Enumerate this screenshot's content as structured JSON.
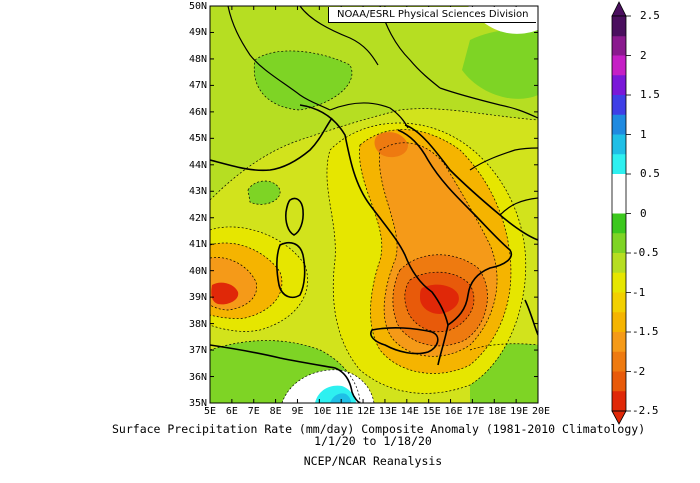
{
  "credit": "NOAA/ESRL Physical Sciences Division",
  "lat_labels": [
    "50N",
    "49N",
    "48N",
    "47N",
    "46N",
    "45N",
    "44N",
    "43N",
    "42N",
    "41N",
    "40N",
    "39N",
    "38N",
    "37N",
    "36N",
    "35N"
  ],
  "lon_labels": [
    "5E",
    "6E",
    "7E",
    "8E",
    "9E",
    "10E",
    "11E",
    "12E",
    "13E",
    "14E",
    "15E",
    "16E",
    "17E",
    "18E",
    "19E",
    "20E"
  ],
  "caption": {
    "line1": "Surface Precipitation Rate (mm/day) Composite Anomaly (1981-2010 Climatology)",
    "line2": "1/1/20  to 1/18/20",
    "line3": "NCEP/NCAR Reanalysis"
  },
  "colorbar": {
    "labels": [
      "2.5",
      "2",
      "1.5",
      "1",
      "0.5",
      "0",
      "-0.5",
      "-1",
      "-1.5",
      "-2",
      "-2.5"
    ],
    "colors": [
      "#4a0f5e",
      "#8a1a8e",
      "#c51fc5",
      "#7a18d8",
      "#3f3fe6",
      "#1f8ae0",
      "#1fbfe6",
      "#2ef0f0",
      "#ffffff",
      "#ffffff",
      "#3cc81e",
      "#7ed425",
      "#b6de22",
      "#e6e600",
      "#f2d000",
      "#f5b400",
      "#f59a18",
      "#ee7a10",
      "#e85a0a",
      "#e02808"
    ]
  },
  "field": {
    "type": "precipitation-anomaly",
    "lon_range": [
      5,
      20
    ],
    "lat_range": [
      35,
      50
    ],
    "minimum_center_lon_lat": [
      15.3,
      39.1
    ],
    "secondary_minimum_lon_lat": [
      5.6,
      39.1
    ],
    "positive_anomaly_lon_lat": [
      10.6,
      35.2
    ]
  }
}
